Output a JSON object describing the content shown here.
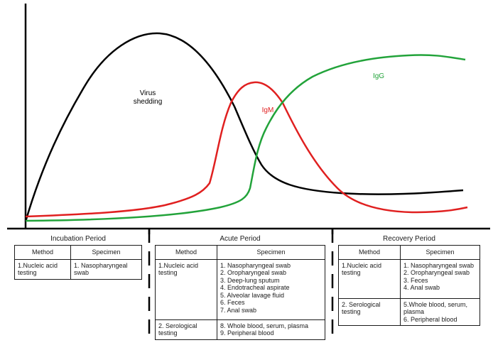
{
  "curves": {
    "virus": {
      "label": "Virus\nshedding",
      "color": "#000000"
    },
    "igm": {
      "label": "IgM",
      "color": "#e02020"
    },
    "igg": {
      "label": "IgG",
      "color": "#22a33a"
    }
  },
  "headers": {
    "method": "Method",
    "specimen": "Specimen"
  },
  "periods": {
    "incubation": {
      "title": "Incubation Period",
      "rows": [
        {
          "method": "1.Nucleic acid testing",
          "specimens": [
            "1. Nasopharyngeal swab"
          ]
        }
      ]
    },
    "acute": {
      "title": "Acute Period",
      "rows": [
        {
          "method": "1.Nucleic acid testing",
          "specimens": [
            "1. Nasopharyngeal swab",
            "2. Oropharyngeal swab",
            "3. Deep-lung sputum",
            "4. Endotracheal aspirate",
            "5. Alveolar lavage fluid",
            "6. Feces",
            "7. Anal swab"
          ]
        },
        {
          "method": "2. Serological testing",
          "specimens": [
            "8. Whole blood, serum, plasma",
            "9. Peripheral blood"
          ]
        }
      ]
    },
    "recovery": {
      "title": "Recovery Period",
      "rows": [
        {
          "method": "1.Nucleic acid testing",
          "specimens": [
            "1. Nasopharyngeal swab",
            "2. Oropharyngeal swab",
            "3. Feces",
            "4. Anal swab"
          ]
        },
        {
          "method": "2. Serological testing",
          "specimens": [
            "5.Whole blood, serum, plasma",
            "6. Peripheral blood"
          ]
        }
      ]
    }
  }
}
